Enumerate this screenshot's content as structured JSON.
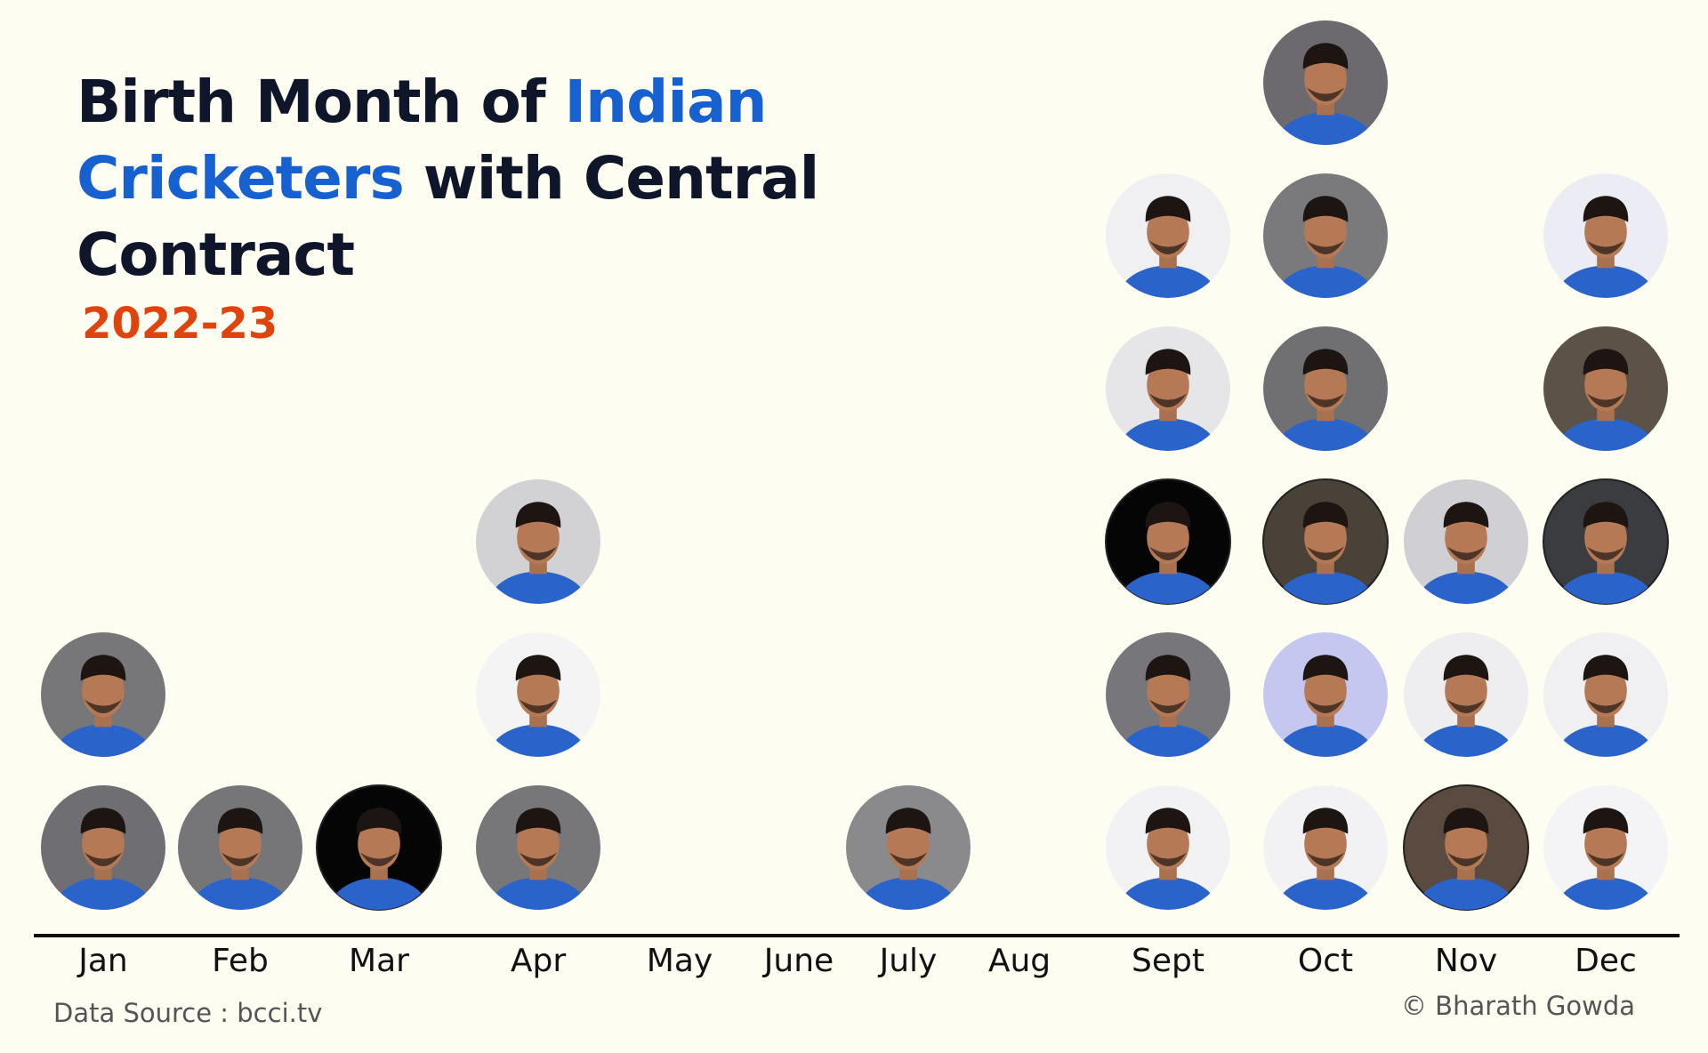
{
  "title": {
    "part1": "Birth Month of ",
    "highlight": "Indian Cricketers",
    "part2": " with Central Contract"
  },
  "subtitle": "2022-23",
  "source": "Data Source : bcci.tv",
  "credit": "© Bharath Gowda",
  "colors": {
    "title": "#0f1629",
    "highlight": "#1660cf",
    "subtitle": "#e0440e",
    "axis": "#111111"
  },
  "chart_data": {
    "type": "pictograph",
    "categories": [
      "Jan",
      "Feb",
      "Mar",
      "Apr",
      "May",
      "June",
      "July",
      "Aug",
      "Sept",
      "Oct",
      "Nov",
      "Dec"
    ],
    "values": [
      2,
      1,
      1,
      3,
      0,
      0,
      1,
      0,
      5,
      6,
      3,
      5
    ],
    "marker": "player-photo",
    "marker_backgrounds": [
      [
        "#6e6e73",
        "#777779"
      ],
      [
        "#767678"
      ],
      [
        "#050505"
      ],
      [
        "#77777a",
        "#f4f4f4",
        "#d2d2d4"
      ],
      [],
      [],
      [
        "#8a8a8c"
      ],
      [],
      [
        "#f2f2f4",
        "#77767a",
        "#050505",
        "#e6e6e8",
        "#f0f0f2"
      ],
      [
        "#f2f2f4",
        "#c4c8f0",
        "#4a4138",
        "#707072",
        "#7a7a7c",
        "#6c6a6e"
      ],
      [
        "#5a4a40",
        "#eeeef0",
        "#d0d0d4"
      ],
      [
        "#f4f4f6",
        "#f0f0f2",
        "#3a3c40",
        "#5c5248",
        "#ececf4"
      ]
    ]
  }
}
